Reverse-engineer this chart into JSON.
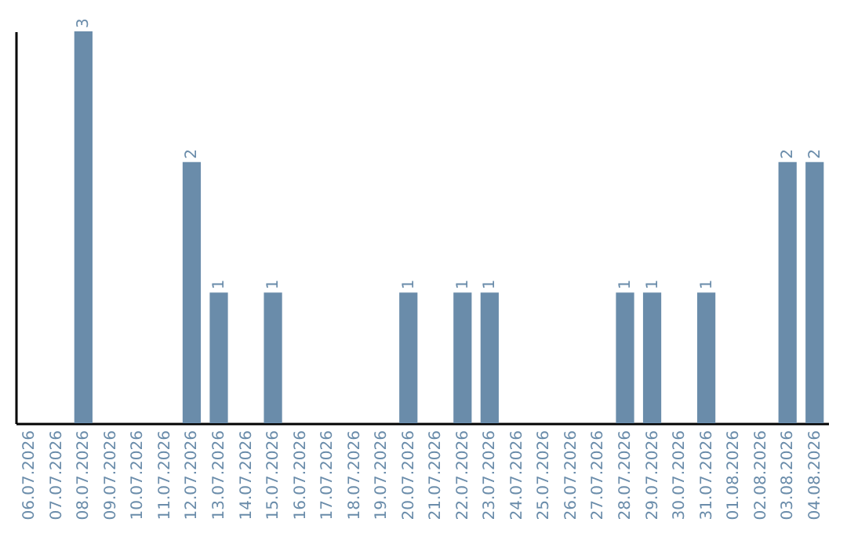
{
  "chart_data": {
    "type": "bar",
    "categories": [
      "06.07.2026",
      "07.07.2026",
      "08.07.2026",
      "09.07.2026",
      "10.07.2026",
      "11.07.2026",
      "12.07.2026",
      "13.07.2026",
      "14.07.2026",
      "15.07.2026",
      "16.07.2026",
      "17.07.2026",
      "18.07.2026",
      "19.07.2026",
      "20.07.2026",
      "21.07.2026",
      "22.07.2026",
      "23.07.2026",
      "24.07.2026",
      "25.07.2026",
      "26.07.2026",
      "27.07.2026",
      "28.07.2026",
      "29.07.2026",
      "30.07.2026",
      "31.07.2026",
      "01.08.2026",
      "02.08.2026",
      "03.08.2026",
      "04.08.2026"
    ],
    "values": [
      0,
      0,
      3,
      0,
      0,
      0,
      2,
      1,
      0,
      1,
      0,
      0,
      0,
      0,
      1,
      0,
      1,
      1,
      0,
      0,
      0,
      0,
      1,
      1,
      0,
      1,
      0,
      0,
      2,
      2
    ],
    "value_labels": [
      null,
      null,
      "3",
      null,
      null,
      null,
      "2",
      "1",
      null,
      "1",
      null,
      null,
      null,
      null,
      "1",
      null,
      "1",
      "1",
      null,
      null,
      null,
      null,
      "1",
      "1",
      null,
      "1",
      null,
      null,
      "2",
      "2"
    ],
    "color": "#6a8caa"
  }
}
